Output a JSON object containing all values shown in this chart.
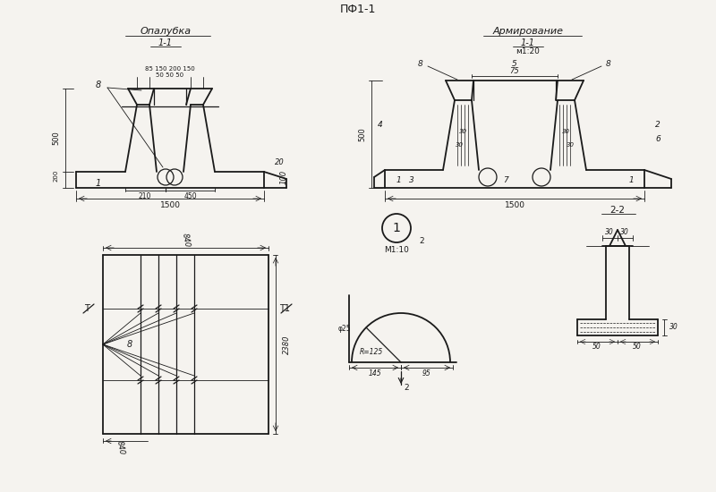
{
  "title": "ПФ1-1",
  "bg_color": "#f5f3ef",
  "line_color": "#1a1a1a",
  "section_title_left": "Опалубка",
  "section_title_right": "Армирование",
  "scale_left": "1-1",
  "scale_right_top": "1-1",
  "scale_right_sub": "м1:20",
  "scale_circle_label": "1",
  "scale_circle_sub": "М1:10",
  "section_22": "2-2",
  "dim_2": "2"
}
